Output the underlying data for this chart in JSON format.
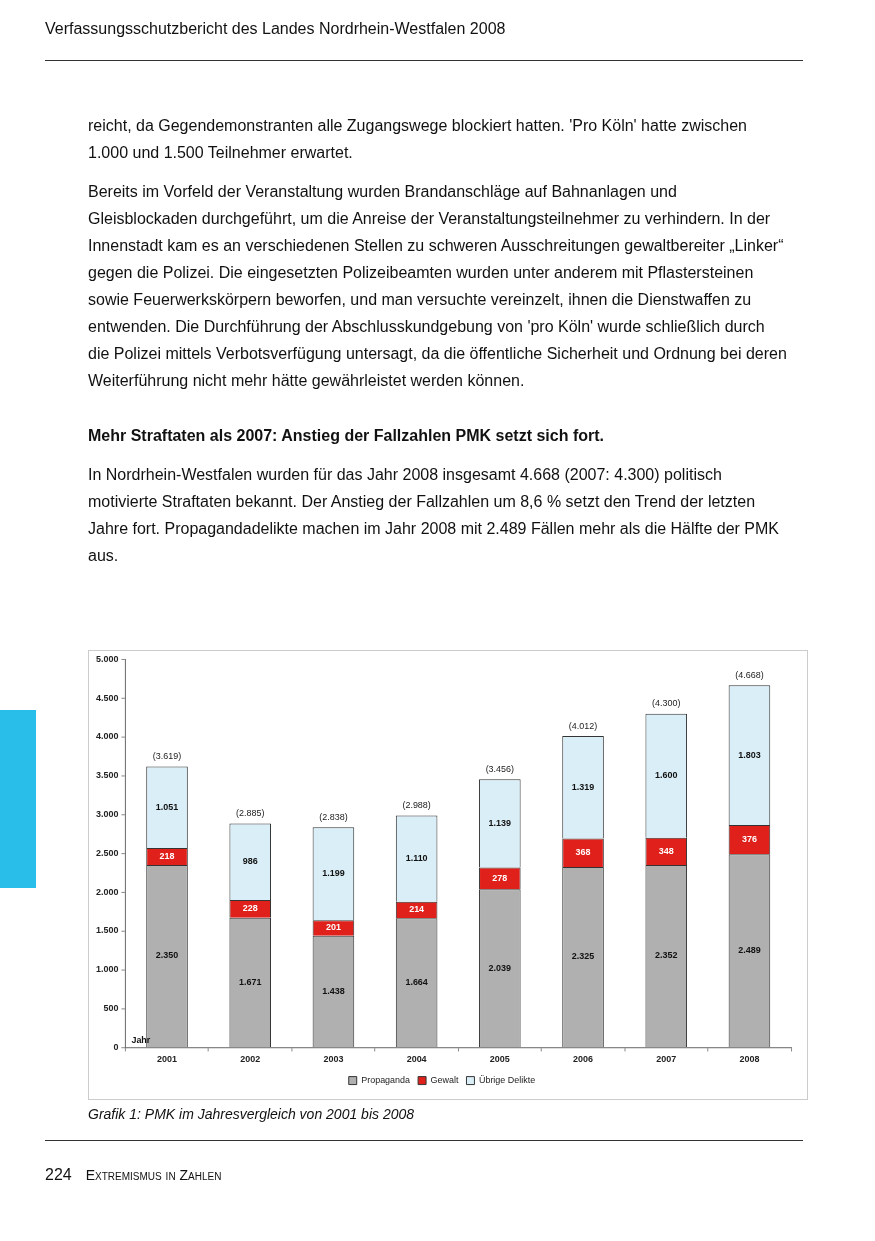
{
  "chart_data": {
    "type": "bar",
    "stacked": true,
    "title": "Grafik 1: PMK im Jahresvergleich von 2001 bis 2008",
    "xlabel": "Jahr",
    "annotations": [
      "Verfassungsschutzbericht des Landes Nordrhein-Westfalen 2008",
      "reicht, da Gegendemonstranten alle Zugangswege blockiert hatten. 'Pro Köln' hatte zwischen 1.000 und 1.500 Teilnehmer erwartet.",
      "Bereits im Vorfeld der Veranstaltung wurden Brandanschläge auf Bahnanlagen und Gleisblockaden durchgeführt, um die Anreise der Veranstaltungsteilnehmer zu verhindern. In der Innenstadt kam es an verschiedenen Stellen zu schweren Ausschreitungen gewaltbereiter „Linker“ gegen die Polizei. Die eingesetzten Polizeibeamten wurden unter anderem mit Pflastersteinen sowie Feuerwerkskörpern beworfen, und man versuchte vereinzelt, ihnen die Dienstwaffen zu entwenden. Die Durchführung der Abschlusskundgebung von 'pro Köln' wurde schließlich durch die Polizei mittels Verbotsverfügung untersagt, da die öffentliche Sicherheit und Ordnung bei deren Weiterführung nicht mehr hätte gewährleistet werden können.",
      "Mehr Straftaten als 2007: Anstieg der Fallzahlen PMK setzt sich fort.",
      "In Nordrhein-Westfalen wurden für das Jahr 2008 insgesamt 4.668 (2007: 4.300) politisch motivierte Straftaten bekannt. Der Anstieg der Fallzahlen um 8,6 % setzt den Trend der letzten Jahre fort. Propagandadelikte machen im Jahr 2008 mit 2.489 Fällen mehr als die Hälfte der PMK aus.",
      "224",
      "Extremismus in Zahlen"
    ],
    "categories": [
      "2001",
      "2002",
      "2003",
      "2004",
      "2005",
      "2006",
      "2007",
      "2008"
    ],
    "series": [
      {
        "name": "Propaganda",
        "color": "#b0b0b0",
        "values": [
          2350,
          1671,
          1438,
          1664,
          2039,
          2325,
          2352,
          2489
        ],
        "value_labels": [
          "2.350",
          "1.671",
          "1.438",
          "1.664",
          "2.039",
          "2.325",
          "2.352",
          "2.489"
        ]
      },
      {
        "name": "Gewalt",
        "color": "#e0201b",
        "values": [
          218,
          228,
          201,
          214,
          278,
          368,
          348,
          376
        ],
        "value_labels": [
          "218",
          "228",
          "201",
          "214",
          "278",
          "368",
          "348",
          "376"
        ]
      },
      {
        "name": "Übrige Delikte",
        "color": "#d9eef7",
        "values": [
          1051,
          986,
          1199,
          1110,
          1139,
          1319,
          1600,
          1803
        ],
        "value_labels": [
          "1.051",
          "986",
          "1.199",
          "1.110",
          "1.139",
          "1.319",
          "1.600",
          "1.803"
        ]
      }
    ],
    "totals": [
      "(3.619)",
      "(2.885)",
      "(2.838)",
      "(2.988)",
      "(3.456)",
      "(4.012)",
      "(4.300)",
      "(4.668)"
    ],
    "ylim": [
      0,
      5000
    ],
    "yticks": [
      {
        "value": 0,
        "label": "0"
      },
      {
        "value": 500,
        "label": "500"
      },
      {
        "value": 1000,
        "label": "1.000"
      },
      {
        "value": 1500,
        "label": "1.500"
      },
      {
        "value": 2000,
        "label": "2.000"
      },
      {
        "value": 2500,
        "label": "2.500"
      },
      {
        "value": 3000,
        "label": "3.000"
      },
      {
        "value": 3500,
        "label": "3.500"
      },
      {
        "value": 4000,
        "label": "4.000"
      },
      {
        "value": 4500,
        "label": "4.500"
      },
      {
        "value": 5000,
        "label": "5.000"
      }
    ],
    "grid": false,
    "legend": "bottom"
  }
}
